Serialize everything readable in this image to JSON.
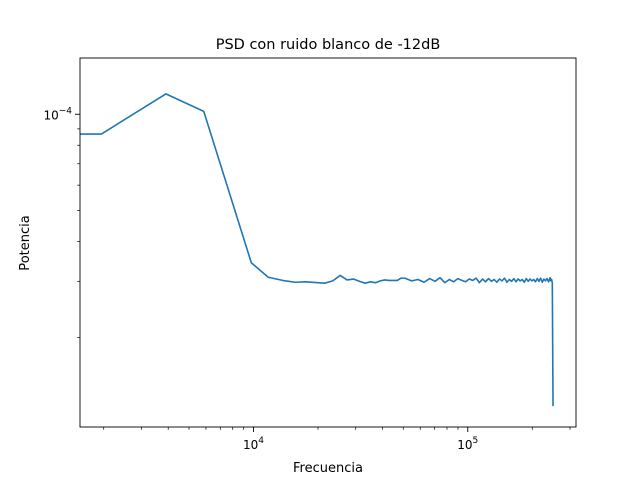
{
  "chart_data": {
    "type": "line",
    "title": "PSD con ruido blanco de -12dB",
    "xlabel": "Frecuencia",
    "ylabel": "Potencia",
    "xscale": "log",
    "yscale": "log",
    "xlim": [
      1550,
      320000
    ],
    "ylim": [
      1.05e-05,
      0.00015
    ],
    "grid": false,
    "legend": "none",
    "color": "#1f77b4",
    "x_ticks": [
      {
        "value": 10000,
        "base": "10",
        "exp": "4"
      },
      {
        "value": 100000,
        "base": "10",
        "exp": "5"
      }
    ],
    "y_ticks": [
      {
        "value": 0.0001,
        "base": "10",
        "exp": "−4"
      }
    ],
    "series": [
      {
        "x": [
          1550,
          1950,
          3900,
          5860,
          9770,
          11720,
          13670,
          15630,
          17580,
          21480,
          23440,
          25390,
          27340,
          29300,
          31250,
          33200,
          35160,
          37110,
          39060,
          41020,
          42970,
          46880,
          48830,
          50780,
          54690,
          58590,
          62500,
          66410,
          70310,
          74220,
          78130,
          82030,
          85940,
          89840,
          93750,
          97660,
          101560,
          105470,
          109380,
          113280,
          117190,
          121090,
          125000,
          128910,
          132810,
          136720,
          140630,
          144530,
          148440,
          152340,
          156250,
          160160,
          164060,
          167970,
          171880,
          175780,
          179690,
          183590,
          187500,
          191410,
          195310,
          199220,
          203130,
          207030,
          210940,
          214840,
          218750,
          222660,
          226560,
          230470,
          234380,
          238280,
          242190,
          244140,
          246090,
          248050,
          250000
        ],
        "y": [
          8.67e-05,
          8.67e-05,
          0.0001158,
          0.0001021,
          3.43e-05,
          3.09e-05,
          3.02e-05,
          2.98e-05,
          2.99e-05,
          2.96e-05,
          3.01e-05,
          3.13e-05,
          3.03e-05,
          3.05e-05,
          3e-05,
          2.96e-05,
          2.99e-05,
          2.97e-05,
          3.01e-05,
          3.03e-05,
          3.02e-05,
          3.02e-05,
          3.07e-05,
          3.07e-05,
          3.01e-05,
          3.04e-05,
          2.98e-05,
          3.06e-05,
          3e-05,
          3.08e-05,
          2.97e-05,
          3.04e-05,
          2.99e-05,
          3.06e-05,
          3.02e-05,
          2.99e-05,
          3.05e-05,
          3.02e-05,
          3.07e-05,
          2.97e-05,
          3.05e-05,
          2.99e-05,
          3.06e-05,
          3e-05,
          3.04e-05,
          2.98e-05,
          3.05e-05,
          3.01e-05,
          3.07e-05,
          2.98e-05,
          3.04e-05,
          3e-05,
          3.06e-05,
          2.99e-05,
          3.05e-05,
          3.01e-05,
          3.04e-05,
          2.98e-05,
          3.06e-05,
          3e-05,
          3.05e-05,
          3.01e-05,
          3.04e-05,
          2.99e-05,
          3.06e-05,
          3e-05,
          3.07e-05,
          2.98e-05,
          3.05e-05,
          3.01e-05,
          3.06e-05,
          2.99e-05,
          3.08e-05,
          3.01e-05,
          3.04e-05,
          2.97e-05,
          1.22e-05
        ]
      }
    ]
  }
}
